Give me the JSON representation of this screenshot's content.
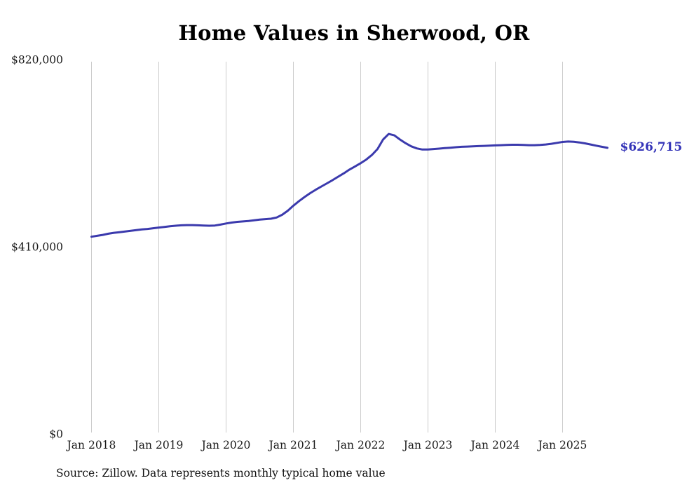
{
  "chart": {
    "title": "Home Values in Sherwood, OR",
    "source_note": "Source: Zillow. Data represents monthly typical home value",
    "end_value_label": "$626,715",
    "colors": {
      "line": "#3b3aad",
      "end_label": "#3434b8",
      "grid": "#cccccc",
      "title": "#000000",
      "tick": "#1a1a1a",
      "background": "#ffffff"
    }
  },
  "chart_data": {
    "type": "line",
    "title": "Home Values in Sherwood, OR",
    "xlabel": "",
    "ylabel": "",
    "ylim": [
      0,
      820000
    ],
    "grid": "vertical-only",
    "legend": "none",
    "x_ticks": [
      "Jan 2018",
      "Jan 2019",
      "Jan 2020",
      "Jan 2021",
      "Jan 2022",
      "Jan 2023",
      "Jan 2024",
      "Jan 2025"
    ],
    "y_ticks": [
      {
        "label": "$820,000",
        "value": 820000
      },
      {
        "label": "$410,000",
        "value": 410000
      },
      {
        "label": "$0",
        "value": 0
      }
    ],
    "annotation": {
      "text": "$626,715",
      "x": "2025-09",
      "value": 626715
    },
    "source": "Source: Zillow. Data represents monthly typical home value",
    "series": [
      {
        "name": "Typical home value",
        "x": [
          "2018-01",
          "2018-02",
          "2018-03",
          "2018-04",
          "2018-05",
          "2018-06",
          "2018-07",
          "2018-08",
          "2018-09",
          "2018-10",
          "2018-11",
          "2018-12",
          "2019-01",
          "2019-02",
          "2019-03",
          "2019-04",
          "2019-05",
          "2019-06",
          "2019-07",
          "2019-08",
          "2019-09",
          "2019-10",
          "2019-11",
          "2019-12",
          "2020-01",
          "2020-02",
          "2020-03",
          "2020-04",
          "2020-05",
          "2020-06",
          "2020-07",
          "2020-08",
          "2020-09",
          "2020-10",
          "2020-11",
          "2020-12",
          "2021-01",
          "2021-02",
          "2021-03",
          "2021-04",
          "2021-05",
          "2021-06",
          "2021-07",
          "2021-08",
          "2021-09",
          "2021-10",
          "2021-11",
          "2021-12",
          "2022-01",
          "2022-02",
          "2022-03",
          "2022-04",
          "2022-05",
          "2022-06",
          "2022-07",
          "2022-08",
          "2022-09",
          "2022-10",
          "2022-11",
          "2022-12",
          "2023-01",
          "2023-02",
          "2023-03",
          "2023-04",
          "2023-05",
          "2023-06",
          "2023-07",
          "2023-08",
          "2023-09",
          "2023-10",
          "2023-11",
          "2023-12",
          "2024-01",
          "2024-02",
          "2024-03",
          "2024-04",
          "2024-05",
          "2024-06",
          "2024-07",
          "2024-08",
          "2024-09",
          "2024-10",
          "2024-11",
          "2024-12",
          "2025-01",
          "2025-02",
          "2025-03",
          "2025-04",
          "2025-05",
          "2025-06",
          "2025-07",
          "2025-08",
          "2025-09"
        ],
        "values": [
          432000,
          434000,
          436000,
          438500,
          440500,
          442000,
          443500,
          445000,
          446500,
          448000,
          449000,
          450500,
          452000,
          453500,
          455000,
          456000,
          457000,
          457500,
          457500,
          457000,
          456500,
          456000,
          456500,
          458500,
          461000,
          463000,
          464500,
          465500,
          466500,
          468000,
          469500,
          470500,
          471500,
          474000,
          480000,
          489000,
          500000,
          510000,
          519000,
          527500,
          535000,
          542000,
          549000,
          556000,
          563500,
          571000,
          579000,
          586000,
          593000,
          601000,
          611000,
          624000,
          645000,
          657000,
          654000,
          645000,
          637000,
          630000,
          625500,
          623000,
          623000,
          624000,
          625000,
          626000,
          627000,
          628000,
          629000,
          629500,
          630000,
          630500,
          631000,
          631500,
          632000,
          632500,
          633000,
          633500,
          633500,
          633000,
          632500,
          632500,
          633000,
          634000,
          635500,
          637500,
          639500,
          640500,
          640000,
          638500,
          636500,
          634000,
          631500,
          629000,
          626715
        ]
      }
    ]
  }
}
